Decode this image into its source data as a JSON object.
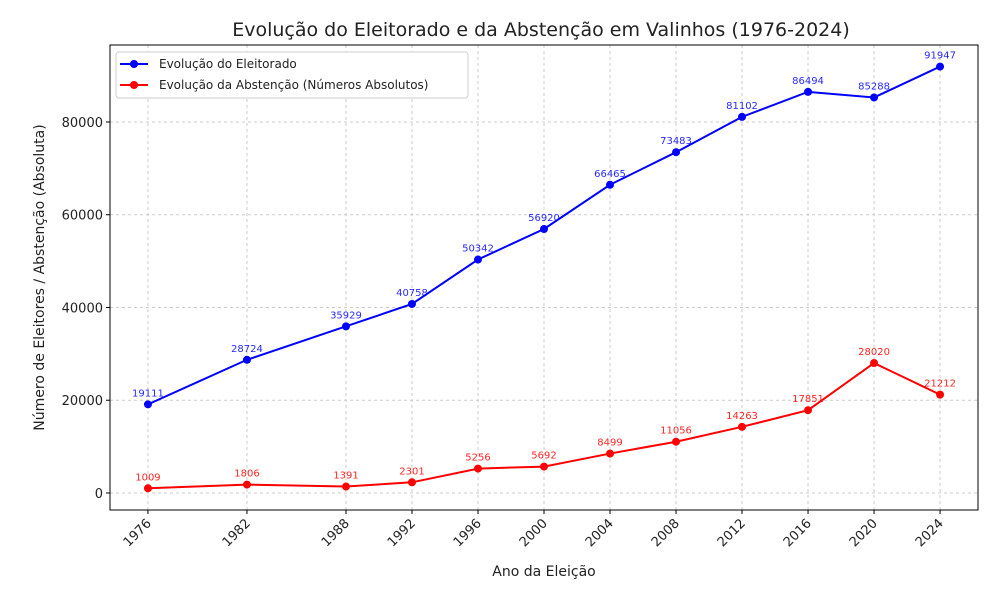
{
  "chart_data": {
    "type": "line",
    "title": "Evolução do Eleitorado e da Abstenção em Valinhos (1976-2024)",
    "xlabel": "Ano da Eleição",
    "ylabel": "Número de Eleitores / Abstenção (Absoluta)",
    "x": [
      1976,
      1982,
      1988,
      1992,
      1996,
      2000,
      2004,
      2008,
      2012,
      2016,
      2020,
      2024
    ],
    "x_tick_labels": [
      "1976",
      "1982",
      "1988",
      "1992",
      "1996",
      "2000",
      "2004",
      "2008",
      "2012",
      "2016",
      "2020",
      "2024"
    ],
    "y_ticks": [
      0,
      20000,
      40000,
      60000,
      80000
    ],
    "y_tick_labels": [
      "0",
      "20000",
      "40000",
      "60000",
      "80000"
    ],
    "ylim": [
      -3670,
      96600
    ],
    "xlim": [
      1973.7,
      2026.3
    ],
    "grid": true,
    "legend_position": "top-left",
    "series": [
      {
        "name": "Evolução do Eleitorado",
        "color": "#0000ff",
        "values": [
          19111,
          28724,
          35929,
          40758,
          50342,
          56920,
          66465,
          73483,
          81102,
          86494,
          85288,
          91947
        ]
      },
      {
        "name": "Evolução da Abstenção (Números Absolutos)",
        "color": "#ff0000",
        "values": [
          1009,
          1806,
          1391,
          2301,
          5256,
          5692,
          8499,
          11056,
          14263,
          17851,
          28020,
          21212
        ]
      }
    ]
  }
}
